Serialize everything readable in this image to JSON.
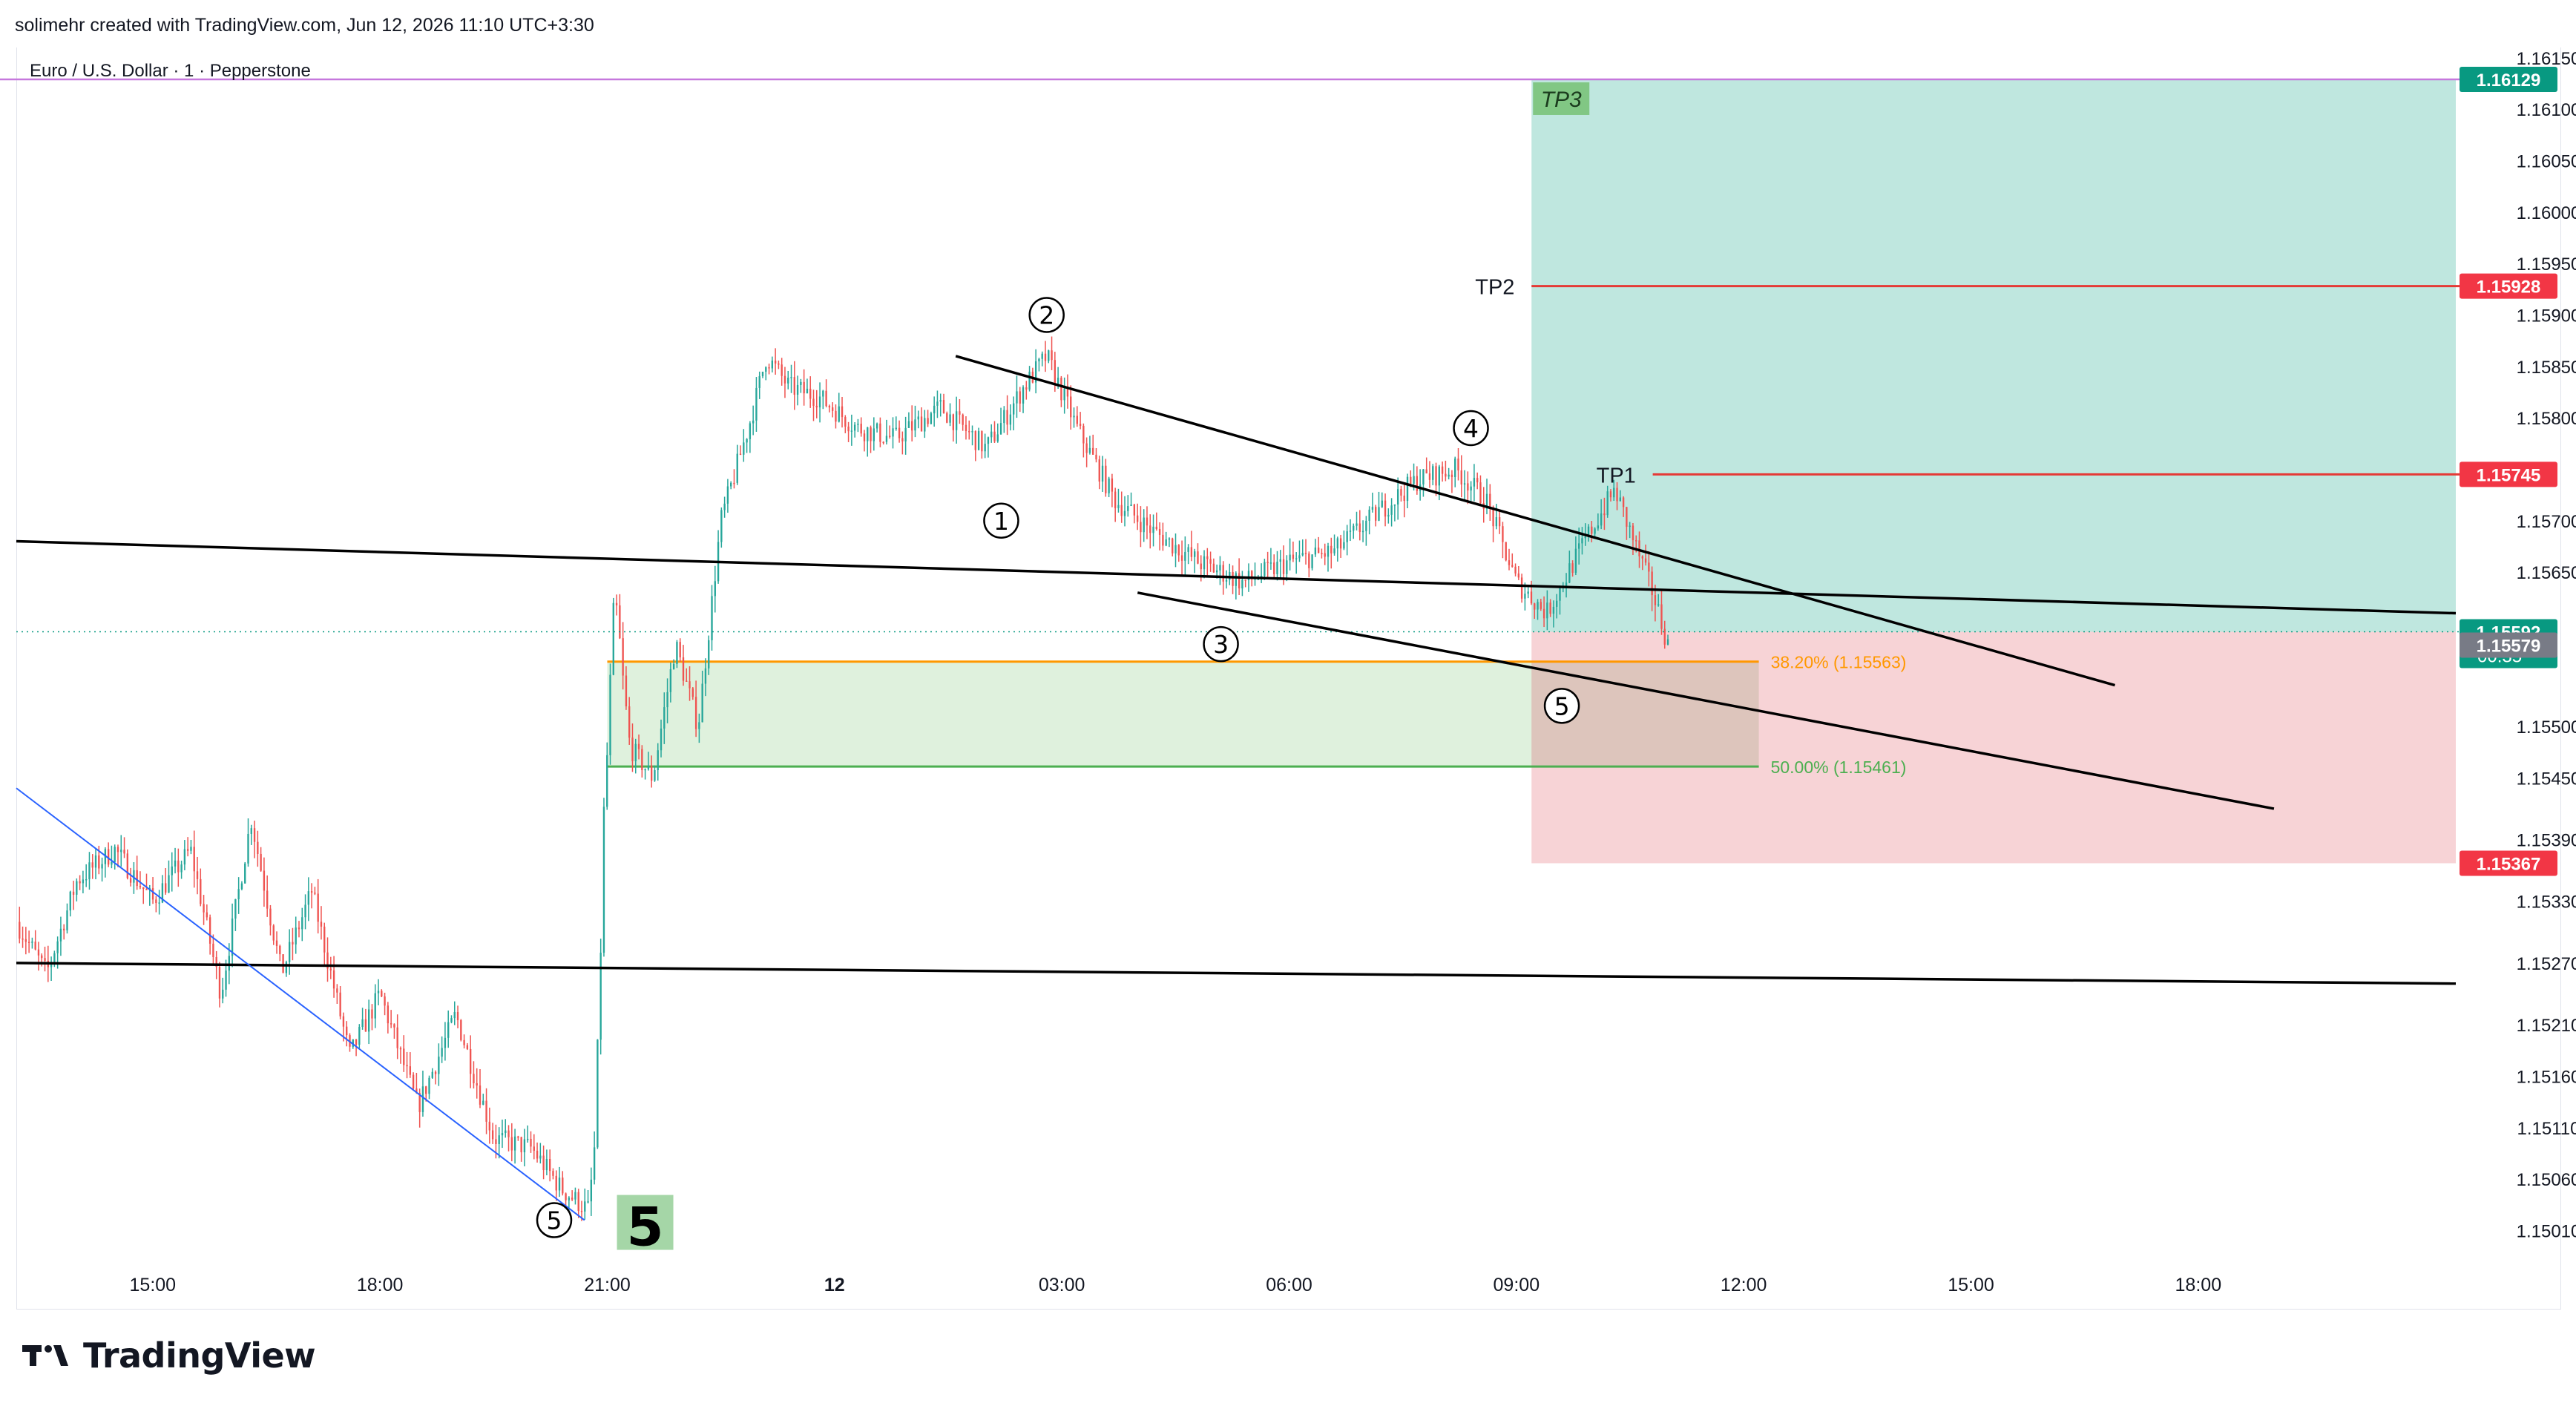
{
  "header": {
    "credit": "solimehr created with TradingView.com, Jun 12, 2026 11:10 UTC+3:30"
  },
  "footer": {
    "brand": "TradingView"
  },
  "colors": {
    "up": "#26a69a",
    "down": "#ef5350",
    "sl_zone": "#f7d3d6",
    "tp_zone": "#bfe7df",
    "fib_zone": "#d9efd7",
    "fib38": "#ff9800",
    "fib50": "#4caf50",
    "tp_line": "#e53935",
    "trendline": "#000000",
    "blue_line": "#2962ff",
    "purple_line": "#c678dd",
    "tp3_badge": "#81c784"
  },
  "chart_data": {
    "type": "candlestick",
    "title": "Euro / U.S. Dollar · 1 · Pepperstone",
    "instrument": "Euro / U.S. Dollar",
    "timeframe": "1",
    "broker": "Pepperstone",
    "y_axis": {
      "range": [
        1.1498,
        1.1616
      ],
      "ticks": [
        "1.16150",
        "1.16100",
        "1.16050",
        "1.16000",
        "1.15950",
        "1.15900",
        "1.15850",
        "1.15800",
        "1.15700",
        "1.15650",
        "1.15500",
        "1.15450",
        "1.15390",
        "1.15330",
        "1.15270",
        "1.15210",
        "1.15160",
        "1.15110",
        "1.15060",
        "1.15010"
      ]
    },
    "x_axis": {
      "ticks": [
        {
          "label": "15:00",
          "t": 1.0
        },
        {
          "label": "18:00",
          "t": 4.0
        },
        {
          "label": "21:00",
          "t": 7.0
        },
        {
          "label": "12",
          "t": 10.0
        },
        {
          "label": "03:00",
          "t": 13.0
        },
        {
          "label": "06:00",
          "t": 16.0
        },
        {
          "label": "09:00",
          "t": 19.0
        },
        {
          "label": "12:00",
          "t": 22.0
        },
        {
          "label": "15:00",
          "t": 25.0
        },
        {
          "label": "18:00",
          "t": 28.0
        }
      ],
      "range": [
        -0.8,
        31.4
      ]
    },
    "price_badges": [
      {
        "label": "1.16129",
        "value": 1.16129,
        "color": "#089981"
      },
      {
        "label": "1.15928",
        "value": 1.15928,
        "color": "#f23645"
      },
      {
        "label": "1.15745",
        "value": 1.15745,
        "color": "#f23645"
      },
      {
        "label": "1.15592",
        "value": 1.15592,
        "color": "#089981",
        "sub": "00:35"
      },
      {
        "label": "1.15579",
        "value": 1.15579,
        "color": "#787b86"
      },
      {
        "label": "1.15367",
        "value": 1.15367,
        "color": "#f23645"
      }
    ],
    "last_price": 1.15592,
    "countdown": "00:35",
    "price_path": [
      [
        -0.8,
        1.1531
      ],
      [
        -0.4,
        1.1526
      ],
      [
        0.0,
        1.1535
      ],
      [
        0.5,
        1.1538
      ],
      [
        1.0,
        1.1533
      ],
      [
        1.5,
        1.1538
      ],
      [
        1.9,
        1.1524
      ],
      [
        2.3,
        1.1541
      ],
      [
        2.7,
        1.1526
      ],
      [
        3.1,
        1.1534
      ],
      [
        3.6,
        1.1518
      ],
      [
        4.0,
        1.1524
      ],
      [
        4.5,
        1.1513
      ],
      [
        5.0,
        1.1522
      ],
      [
        5.5,
        1.151
      ],
      [
        6.0,
        1.1509
      ],
      [
        6.4,
        1.1505
      ],
      [
        6.75,
        1.1503
      ],
      [
        6.85,
        1.151
      ],
      [
        6.95,
        1.154
      ],
      [
        7.1,
        1.1562
      ],
      [
        7.3,
        1.1548
      ],
      [
        7.6,
        1.1545
      ],
      [
        7.9,
        1.1558
      ],
      [
        8.2,
        1.155
      ],
      [
        8.5,
        1.157
      ],
      [
        8.9,
        1.158
      ],
      [
        9.1,
        1.1586
      ],
      [
        9.4,
        1.1583
      ],
      [
        9.8,
        1.1582
      ],
      [
        10.3,
        1.1579
      ],
      [
        10.8,
        1.1578
      ],
      [
        11.4,
        1.1581
      ],
      [
        12.0,
        1.1577
      ],
      [
        12.5,
        1.1583
      ],
      [
        12.8,
        1.1586
      ],
      [
        13.2,
        1.1579
      ],
      [
        13.7,
        1.1572
      ],
      [
        14.2,
        1.1569
      ],
      [
        14.8,
        1.1566
      ],
      [
        15.4,
        1.1564
      ],
      [
        16.0,
        1.1566
      ],
      [
        16.6,
        1.1567
      ],
      [
        17.2,
        1.1571
      ],
      [
        17.7,
        1.1574
      ],
      [
        18.2,
        1.1575
      ],
      [
        18.6,
        1.1572
      ],
      [
        19.0,
        1.1564
      ],
      [
        19.4,
        1.1561
      ],
      [
        19.9,
        1.1568
      ],
      [
        20.3,
        1.1573
      ],
      [
        20.5,
        1.1569
      ],
      [
        20.8,
        1.1563
      ],
      [
        21.0,
        1.1558
      ]
    ],
    "zones": [
      {
        "name": "fibonacci-retracement-zone",
        "t": [
          7.0,
          22.2
        ],
        "price": [
          1.15461,
          1.15563
        ]
      },
      {
        "name": "take-profit-zone",
        "t": [
          19.2,
          31.4
        ],
        "price": [
          1.15592,
          1.16129
        ]
      },
      {
        "name": "stop-loss-zone",
        "t": [
          19.2,
          31.4
        ],
        "price": [
          1.15367,
          1.15592
        ]
      }
    ],
    "fib_levels": [
      {
        "label": "38.20% (1.15563)",
        "price": 1.15563,
        "color": "#ff9800"
      },
      {
        "label": "50.00% (1.15461)",
        "price": 1.15461,
        "color": "#4caf50"
      }
    ],
    "target_lines": [
      {
        "label": "TP1",
        "price": 1.15745
      },
      {
        "label": "TP2",
        "price": 1.15928
      }
    ],
    "tp3_label": "TP3",
    "trendlines": [
      {
        "name": "upper-channel",
        "from": [
          11.6,
          1.1586
        ],
        "to": [
          26.9,
          1.1554
        ]
      },
      {
        "name": "lower-channel",
        "from": [
          14.0,
          1.1563
        ],
        "to": [
          29.0,
          1.1542
        ]
      },
      {
        "name": "horizontal-upper",
        "from": [
          -0.8,
          1.1568
        ],
        "to": [
          31.4,
          1.1561
        ]
      },
      {
        "name": "horizontal-lower",
        "from": [
          -0.8,
          1.1527
        ],
        "to": [
          31.4,
          1.1525
        ]
      }
    ],
    "blue_trendline": {
      "from": [
        -0.8,
        1.1544
      ],
      "to": [
        6.7,
        1.1502
      ]
    },
    "purple_line_price": 1.16129,
    "wave_labels": [
      {
        "label": "1",
        "t": 12.2,
        "price": 1.157
      },
      {
        "label": "2",
        "t": 12.8,
        "price": 1.159
      },
      {
        "label": "3",
        "t": 15.1,
        "price": 1.1558
      },
      {
        "label": "4",
        "t": 18.4,
        "price": 1.1579
      },
      {
        "label": "5",
        "t": 19.6,
        "price": 1.1552
      },
      {
        "label": "5",
        "t": 6.3,
        "price": 1.1502
      }
    ],
    "big_wave_label": {
      "label": "5",
      "t": 7.5,
      "price": 1.1502
    }
  }
}
